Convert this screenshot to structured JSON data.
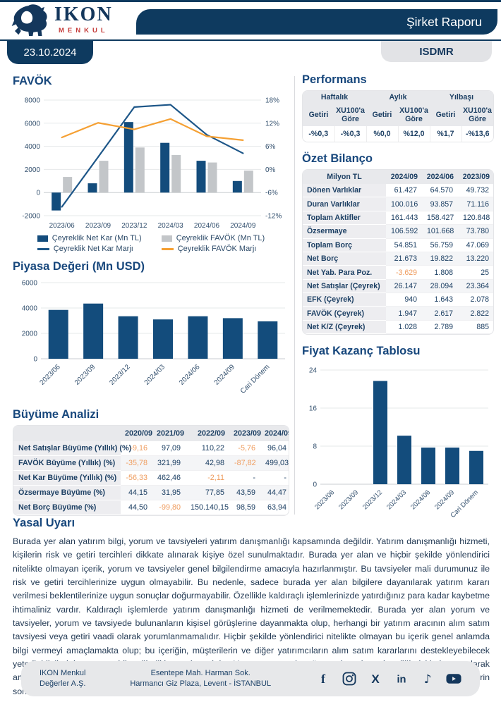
{
  "header": {
    "brand": {
      "name": "IKON",
      "sub": "MENKUL"
    },
    "report_title": "Şirket Raporu",
    "date": "23.10.2024",
    "ticker": "ISDMR"
  },
  "colors": {
    "navy": "#0e3a5f",
    "title_navy": "#17477c",
    "bar_blue": "#134c7c",
    "bar_gray": "#c3c6c9",
    "line_blue": "#1d5688",
    "line_orange": "#f5a033",
    "negative_orange": "#ef9c5e"
  },
  "sections": {
    "performans_title": "Performans",
    "bilanco_title": "Özet Bilanço",
    "buyume_title": "Büyüme Analizi",
    "yasal_title": "Yasal Uyarı"
  },
  "performans": {
    "groups": [
      "Haftalık",
      "Aylık",
      "Yılbaşı"
    ],
    "subheaders": [
      "Getiri",
      "XU100'a Göre"
    ],
    "values": [
      "-%0,3",
      "-%0,3",
      "%0,0",
      "%12,0",
      "%1,7",
      "-%13,6"
    ]
  },
  "bilanco": {
    "columns": [
      "Milyon TL",
      "2024/09",
      "2024/06",
      "2023/09"
    ],
    "rows": [
      {
        "label": "Dönen Varlıklar",
        "values": [
          "61.427",
          "64.570",
          "49.732"
        ]
      },
      {
        "label": "Duran Varlıklar",
        "values": [
          "100.016",
          "93.857",
          "71.116"
        ]
      },
      {
        "label": "Toplam Aktifler",
        "values": [
          "161.443",
          "158.427",
          "120.848"
        ]
      },
      {
        "label": "Özsermaye",
        "values": [
          "106.592",
          "101.668",
          "73.780"
        ]
      },
      {
        "label": "Toplam Borç",
        "values": [
          "54.851",
          "56.759",
          "47.069"
        ]
      },
      {
        "label": "Net Borç",
        "values": [
          "21.673",
          "19.822",
          "13.220"
        ]
      },
      {
        "label": "Net Yab. Para Poz.",
        "values": [
          "-3.629",
          "1.808",
          "25"
        ]
      },
      {
        "label": "Net Satışlar (Çeyrek)",
        "values": [
          "26.147",
          "28.094",
          "23.364"
        ]
      },
      {
        "label": "EFK (Çeyrek)",
        "values": [
          "940",
          "1.643",
          "2.078"
        ]
      },
      {
        "label": "FAVÖK (Çeyrek)",
        "values": [
          "1.947",
          "2.617",
          "2.822"
        ]
      },
      {
        "label": "Net K/Z (Çeyrek)",
        "values": [
          "1.028",
          "2.789",
          "885"
        ]
      }
    ]
  },
  "buyume": {
    "columns": [
      "",
      "2020/09",
      "2021/09",
      "2022/09",
      "2023/09",
      "2024/09"
    ],
    "rows": [
      {
        "label": "Net Satışlar Büyüme (Yıllık) (%)",
        "values": [
          "-9,16",
          "97,09",
          "110,22",
          "-5,76",
          "96,04"
        ]
      },
      {
        "label": "FAVÖK Büyüme (Yıllık) (%)",
        "values": [
          "-35,78",
          "321,99",
          "42,98",
          "-87,82",
          "499,03"
        ]
      },
      {
        "label": "Net Kar Büyüme (Yıllık) (%)",
        "values": [
          "-56,33",
          "462,46",
          "-2,11",
          "-",
          "-"
        ]
      },
      {
        "label": "Özsermaye Büyüme (%)",
        "values": [
          "44,15",
          "31,95",
          "77,85",
          "43,59",
          "44,47"
        ]
      },
      {
        "label": "Net Borç Büyüme (%)",
        "values": [
          "44,50",
          "-99,80",
          "150.140,15",
          "98,59",
          "63,94"
        ]
      }
    ]
  },
  "chart_data": [
    {
      "id": "favok",
      "type": "combo",
      "title": "FAVÖK",
      "categories": [
        "2023/06",
        "2023/09",
        "2023/12",
        "2024/03",
        "2024/06",
        "2024/09"
      ],
      "left_axis": {
        "min": -2000,
        "max": 8000,
        "step": 2000
      },
      "right_axis": {
        "min": -12,
        "max": 18,
        "step": 6,
        "suffix": "%"
      },
      "legend_position": "bottom",
      "grid": true,
      "series": [
        {
          "name": "Çeyreklik Net Kar (Mn TL)",
          "type": "bar",
          "axis": "left",
          "color": "#134c7c",
          "values": [
            -1550,
            800,
            6100,
            4300,
            2750,
            1000
          ]
        },
        {
          "name": "Çeyreklik FAVÖK (Mn TL)",
          "type": "bar",
          "axis": "left",
          "color": "#c3c6c9",
          "values": [
            1350,
            2750,
            3900,
            3250,
            2600,
            1900
          ]
        },
        {
          "name": "Çeyreklik Net Kar Marjı",
          "type": "line",
          "axis": "right",
          "color": "#1d5688",
          "values": [
            -9.7,
            3.2,
            16.2,
            16.8,
            9.0,
            4.2
          ]
        },
        {
          "name": "Çeyreklik FAVÖK Marjı",
          "type": "line",
          "axis": "right",
          "color": "#f5a033",
          "values": [
            8.3,
            12.1,
            10.4,
            13.1,
            8.6,
            7.6
          ]
        }
      ]
    },
    {
      "id": "piyasa",
      "type": "bar",
      "title": "Piyasa Değeri (Mn USD)",
      "categories": [
        "2023/06",
        "2023/09",
        "2023/12",
        "2024/03",
        "2024/06",
        "2024/09",
        "Cari Dönem"
      ],
      "values": [
        3850,
        4350,
        3350,
        3100,
        3350,
        3200,
        2950
      ],
      "ylim": [
        0,
        6000
      ],
      "step": 2000,
      "grid": true,
      "bar_color": "#134c7c"
    },
    {
      "id": "fk",
      "type": "bar",
      "title": "Fiyat Kazanç Tablosu",
      "categories": [
        "2023/06",
        "2023/09",
        "2023/12",
        "2024/03",
        "2024/06",
        "2024/09",
        "Cari Dönem"
      ],
      "values": [
        0,
        0,
        21.7,
        10.2,
        7.7,
        7.7,
        7.0
      ],
      "ylim": [
        0,
        24
      ],
      "step": 8,
      "grid": true,
      "bar_color": "#134c7c"
    }
  ],
  "disclaimer": "Burada yer alan yatırım bilgi, yorum ve tavsiyeleri yatırım danışmanlığı kapsamında değildir. Yatırım danışmanlığı hizmeti, kişilerin risk ve getiri tercihleri dikkate alınarak kişiye özel sunulmaktadır. Burada yer alan ve hiçbir şekilde yönlendirici nitelikte olmayan içerik, yorum ve tavsiyeler genel bilgilendirme amacıyla hazırlanmıştır. Bu tavsiyeler mali durumunuz ile risk ve getiri tercihlerinize uygun olmayabilir. Bu nedenle, sadece burada yer alan bilgilere dayanılarak yatırım kararı verilmesi beklentilerinize uygun sonuçlar doğurmayabilir. Özellikle kaldıraçlı işlemlerinizde yatırdığınız para kadar kaybetme ihtimaliniz vardır. Kaldıraçlı işlemlerde yatırım danışmanlığı hizmeti de verilmemektedir. Burada yer alan yorum ve tavsiyeler, yorum ve tavsiyede bulunanların kişisel görüşlerine dayanmakta olup, herhangi bir yatırım aracının alım satım tavsiyesi veya getiri vaadi olarak yorumlanmamalıdır. Hiçbir şekilde yönlendirici nitelikte olmayan bu içerik genel anlamda bilgi vermeyi amaçlamakta olup; bu içeriğin, müşterilerin ve diğer yatırımcıların alım satım kararlarını destekleyebilecek yeterli bilgileri kapsamayabileceği dikkate alınmalıdır. Yatırım yapmadan önce piyasaların içerdiği riskleri tam olarak anladığınızdan emin olunuz. Web sitemizde yer alan bilgi ve görüşlere dayanılarak yapılacak yatırımlar ve ticari işlemlerin sonuçlarından veya ortaya çıkabilecek tüm zararlardan IKON Menkul Değerler A.Ş. sorumlu tutulamaz.",
  "footer": {
    "company_line1": "IKON Menkul",
    "company_line2": "Değerler A.Ş.",
    "address_line1": "Esentepe Mah. Harman Sok.",
    "address_line2": "Harmancı Giz Plaza, Levent - İSTANBUL",
    "social": [
      "facebook",
      "instagram",
      "x",
      "linkedin",
      "tiktok",
      "youtube"
    ]
  }
}
